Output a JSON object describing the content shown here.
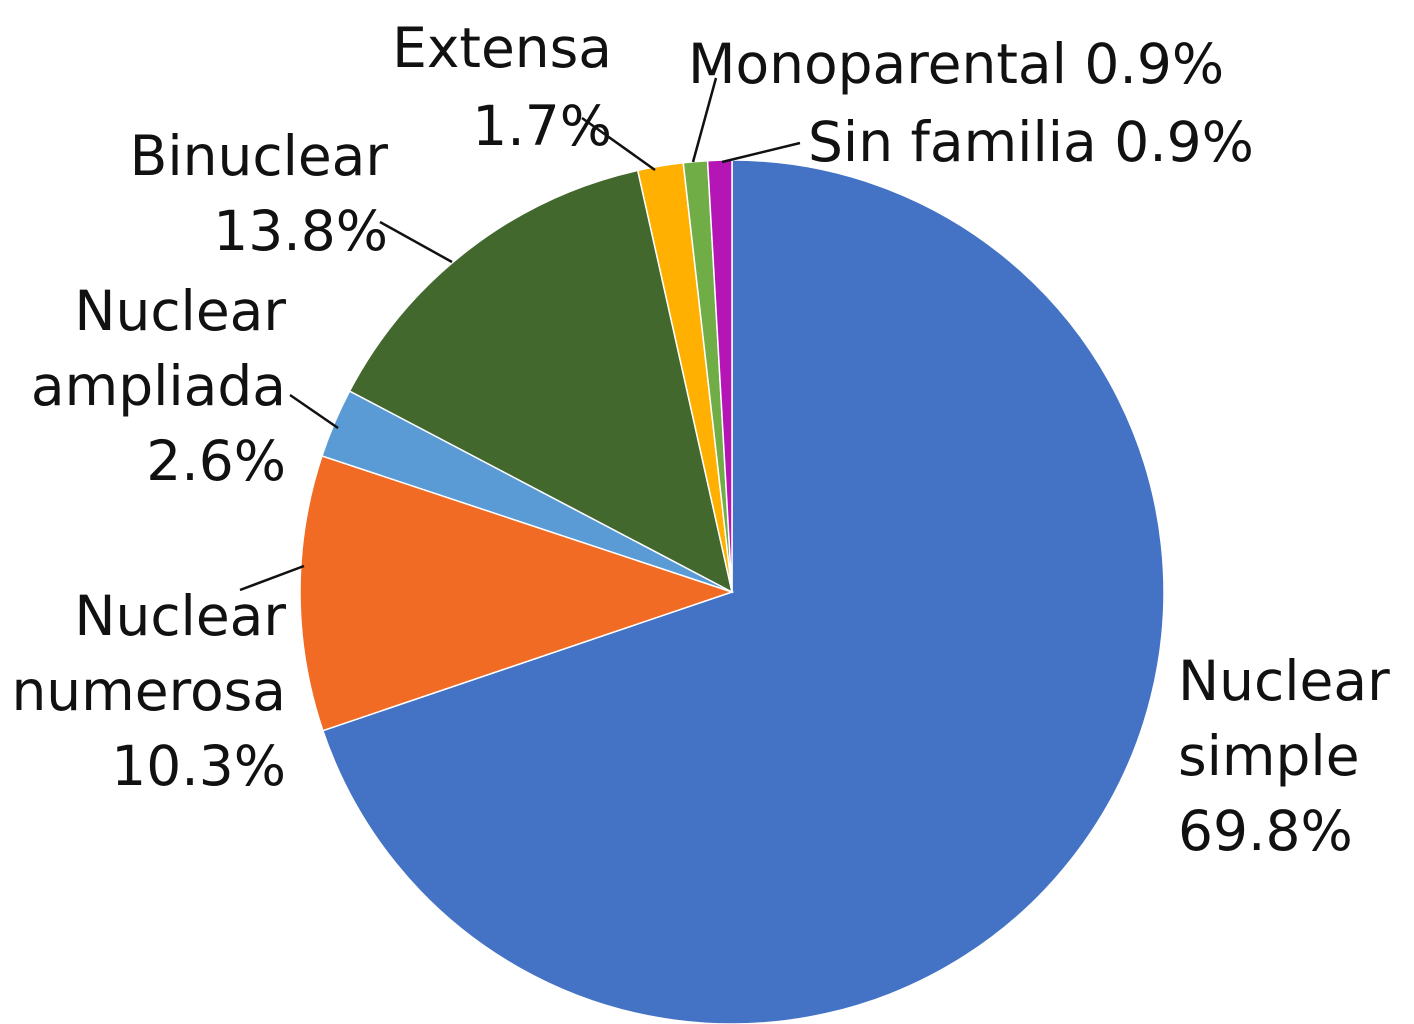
{
  "chart_data": {
    "type": "pie",
    "title": "",
    "unit": "%",
    "start_angle_deg": 0,
    "direction": "clockwise",
    "slices": [
      {
        "id": "nuclear-simple",
        "name_lines": [
          "Nuclear",
          "simple"
        ],
        "value": 69.8,
        "value_label": "69.8%",
        "color": "#4472C4"
      },
      {
        "id": "nuclear-numerosa",
        "name_lines": [
          "Nuclear",
          "numerosa"
        ],
        "value": 10.3,
        "value_label": "10.3%",
        "color": "#F26B25"
      },
      {
        "id": "nuclear-ampliada",
        "name_lines": [
          "Nuclear",
          "ampliada"
        ],
        "value": 2.6,
        "value_label": "2.6%",
        "color": "#5B9BD5"
      },
      {
        "id": "binuclear",
        "name_lines": [
          "Binuclear"
        ],
        "value": 13.8,
        "value_label": "13.8%",
        "color": "#43682D"
      },
      {
        "id": "extensa",
        "name_lines": [
          "Extensa"
        ],
        "value": 1.7,
        "value_label": "1.7%",
        "color": "#FFB000"
      },
      {
        "id": "monoparental",
        "name_lines": [
          "Monoparental 0.9%"
        ],
        "value": 0.9,
        "value_label": "",
        "color": "#70AD47"
      },
      {
        "id": "sin-familia",
        "name_lines": [
          "Sin familia 0.9%"
        ],
        "value": 0.9,
        "value_label": "",
        "color": "#B515B5"
      }
    ]
  }
}
